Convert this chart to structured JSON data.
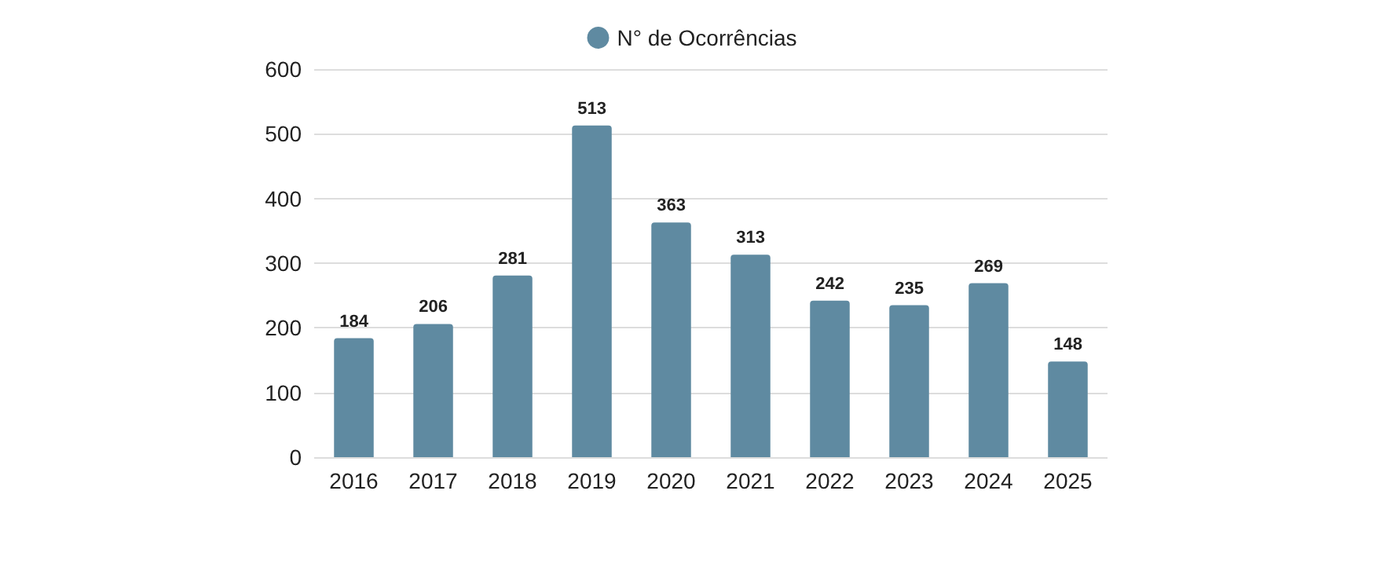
{
  "chart_data": {
    "type": "bar",
    "categories": [
      "2016",
      "2017",
      "2018",
      "2019",
      "2020",
      "2021",
      "2022",
      "2023",
      "2024",
      "2025"
    ],
    "series": [
      {
        "name": "N° de Ocorrências",
        "color": "#5f8aa1",
        "values": [
          184,
          206,
          281,
          513,
          363,
          313,
          242,
          235,
          269,
          148
        ]
      }
    ],
    "ylim": [
      0,
      600
    ],
    "yticks": [
      0,
      100,
      200,
      300,
      400,
      500,
      600
    ],
    "grid": "y",
    "legend": "top",
    "data_labels": true
  }
}
